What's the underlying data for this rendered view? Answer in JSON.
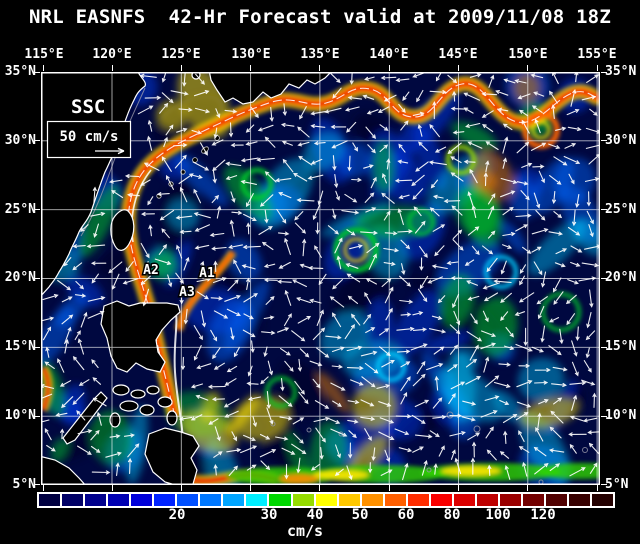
{
  "title": "NRL EASNFS  42-Hr Forecast valid at 2009/11/08 18Z",
  "axes": {
    "lon_labels": [
      "115°E",
      "120°E",
      "125°E",
      "130°E",
      "135°E",
      "140°E",
      "145°E",
      "150°E",
      "155°E"
    ],
    "lat_labels": [
      "35°N",
      "30°N",
      "25°N",
      "20°N",
      "15°N",
      "10°N",
      "5°N"
    ]
  },
  "map": {
    "field_label": "SSC",
    "reference_vector_label": "50 cm/s",
    "annotations": [
      {
        "label": "A1"
      },
      {
        "label": "A2"
      },
      {
        "label": "A3"
      }
    ]
  },
  "colorbar": {
    "unit_label": "cm/s",
    "tick_labels": [
      "20",
      "30",
      "40",
      "50",
      "60",
      "80",
      "100",
      "120"
    ],
    "segment_colors": [
      "#000041",
      "#000066",
      "#00008c",
      "#0000b3",
      "#0000d9",
      "#0023ff",
      "#0050ff",
      "#0078ff",
      "#00a5ff",
      "#00eeff",
      "#00d700",
      "#96dc00",
      "#ffff00",
      "#ffc800",
      "#ff9100",
      "#ff5f00",
      "#ff2d00",
      "#fa0000",
      "#dc0000",
      "#be0000",
      "#9b0000",
      "#730000",
      "#500000",
      "#370000",
      "#230000"
    ]
  },
  "chart_data": {
    "type": "heatmap",
    "title": "NRL EASNFS 42-Hr Forecast valid at 2009/11/08 18Z",
    "field": "Sea surface current (SSC) speed with direction vectors",
    "units": "cm/s",
    "x_range": [
      "115°E",
      "155°E"
    ],
    "y_range": [
      "5°N",
      "35°N"
    ],
    "colorbar_ticks": [
      20,
      30,
      40,
      50,
      60,
      80,
      100,
      120
    ],
    "reference_vector_cm_s": 50,
    "annotations": [
      "A1",
      "A2",
      "A3"
    ],
    "legend_position": "bottom"
  }
}
